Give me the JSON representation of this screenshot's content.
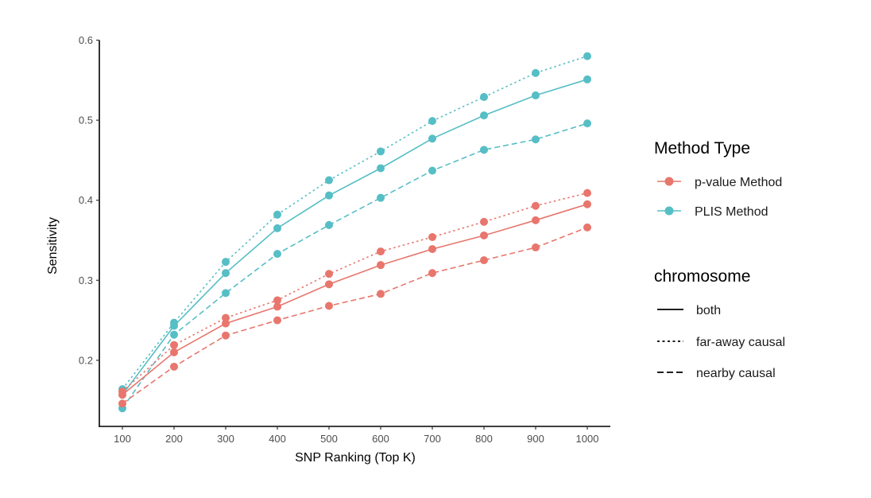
{
  "chart_data": {
    "type": "line",
    "title": "",
    "xlabel": "SNP Ranking (Top K)",
    "ylabel": "Sensitivity",
    "x": [
      100,
      200,
      300,
      400,
      500,
      600,
      700,
      800,
      900,
      1000
    ],
    "x_ticks": [
      "100",
      "200",
      "300",
      "400",
      "500",
      "600",
      "700",
      "800",
      "900",
      "1000"
    ],
    "y_ticks": [
      "0.2",
      "0.3",
      "0.4",
      "0.5",
      "0.6"
    ],
    "y_tick_values": [
      0.2,
      0.3,
      0.4,
      0.5,
      0.6
    ],
    "xlim": [
      65,
      1035
    ],
    "ylim": [
      0.117,
      0.6
    ],
    "grid": false,
    "legend_placement": "right",
    "legends": [
      {
        "title": "Method Type",
        "entries": [
          {
            "label": "p-value Method",
            "color": "#E8766D"
          },
          {
            "label": "PLIS Method",
            "color": "#56BEC5"
          }
        ]
      },
      {
        "title": "chromosome",
        "entries": [
          {
            "label": "both",
            "linetype": "solid"
          },
          {
            "label": "far-away causal",
            "linetype": "dotted"
          },
          {
            "label": "nearby causal",
            "linetype": "dashed"
          }
        ]
      }
    ],
    "series": [
      {
        "name": "PLIS Method - far-away causal",
        "method": "PLIS Method",
        "chromosome": "far-away causal",
        "color": "#56BEC5",
        "linetype": "dotted",
        "values": [
          0.164,
          0.247,
          0.323,
          0.382,
          0.425,
          0.461,
          0.499,
          0.529,
          0.559,
          0.58
        ]
      },
      {
        "name": "PLIS Method - both",
        "method": "PLIS Method",
        "chromosome": "both",
        "color": "#56BEC5",
        "linetype": "solid",
        "values": [
          0.157,
          0.243,
          0.309,
          0.365,
          0.406,
          0.44,
          0.477,
          0.506,
          0.531,
          0.551
        ]
      },
      {
        "name": "PLIS Method - nearby causal",
        "method": "PLIS Method",
        "chromosome": "nearby causal",
        "color": "#56BEC5",
        "linetype": "dashed",
        "values": [
          0.14,
          0.232,
          0.284,
          0.333,
          0.369,
          0.403,
          0.437,
          0.463,
          0.476,
          0.496
        ]
      },
      {
        "name": "p-value Method - far-away causal",
        "method": "p-value Method",
        "chromosome": "far-away causal",
        "color": "#E8766D",
        "linetype": "dotted",
        "values": [
          0.161,
          0.219,
          0.253,
          0.275,
          0.308,
          0.336,
          0.354,
          0.373,
          0.393,
          0.409
        ]
      },
      {
        "name": "p-value Method - both",
        "method": "p-value Method",
        "chromosome": "both",
        "color": "#E8766D",
        "linetype": "solid",
        "values": [
          0.157,
          0.21,
          0.246,
          0.267,
          0.295,
          0.319,
          0.339,
          0.356,
          0.375,
          0.395
        ]
      },
      {
        "name": "p-value Method - nearby causal",
        "method": "p-value Method",
        "chromosome": "nearby causal",
        "color": "#E8766D",
        "linetype": "dashed",
        "values": [
          0.146,
          0.192,
          0.231,
          0.25,
          0.268,
          0.283,
          0.309,
          0.325,
          0.341,
          0.366
        ]
      }
    ]
  }
}
